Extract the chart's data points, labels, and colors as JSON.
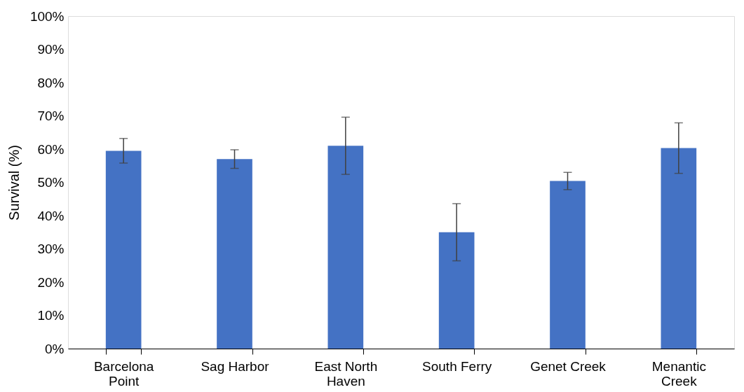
{
  "chart_data": {
    "type": "bar",
    "ylabel": "Survival (%)",
    "categories": [
      "Barcelona Point",
      "Sag Harbor",
      "East North Haven",
      "South Ferry",
      "Genet Creek",
      "Menantic Creek"
    ],
    "values": [
      59.5,
      57,
      61,
      35,
      50.4,
      60.3
    ],
    "errors": [
      3.7,
      2.8,
      8.6,
      8.6,
      2.6,
      7.6
    ],
    "color": "#4472c4",
    "ylim": [
      0,
      100
    ],
    "yticks": [
      {
        "value": 0,
        "label": "0%"
      },
      {
        "value": 10,
        "label": "10%"
      },
      {
        "value": 20,
        "label": "20%"
      },
      {
        "value": 30,
        "label": "30%"
      },
      {
        "value": 40,
        "label": "40%"
      },
      {
        "value": 50,
        "label": "50%"
      },
      {
        "value": 60,
        "label": "60%"
      },
      {
        "value": 70,
        "label": "70%"
      },
      {
        "value": 80,
        "label": "80%"
      },
      {
        "value": 90,
        "label": "90%"
      },
      {
        "value": 100,
        "label": "100%"
      }
    ],
    "grid": false
  }
}
